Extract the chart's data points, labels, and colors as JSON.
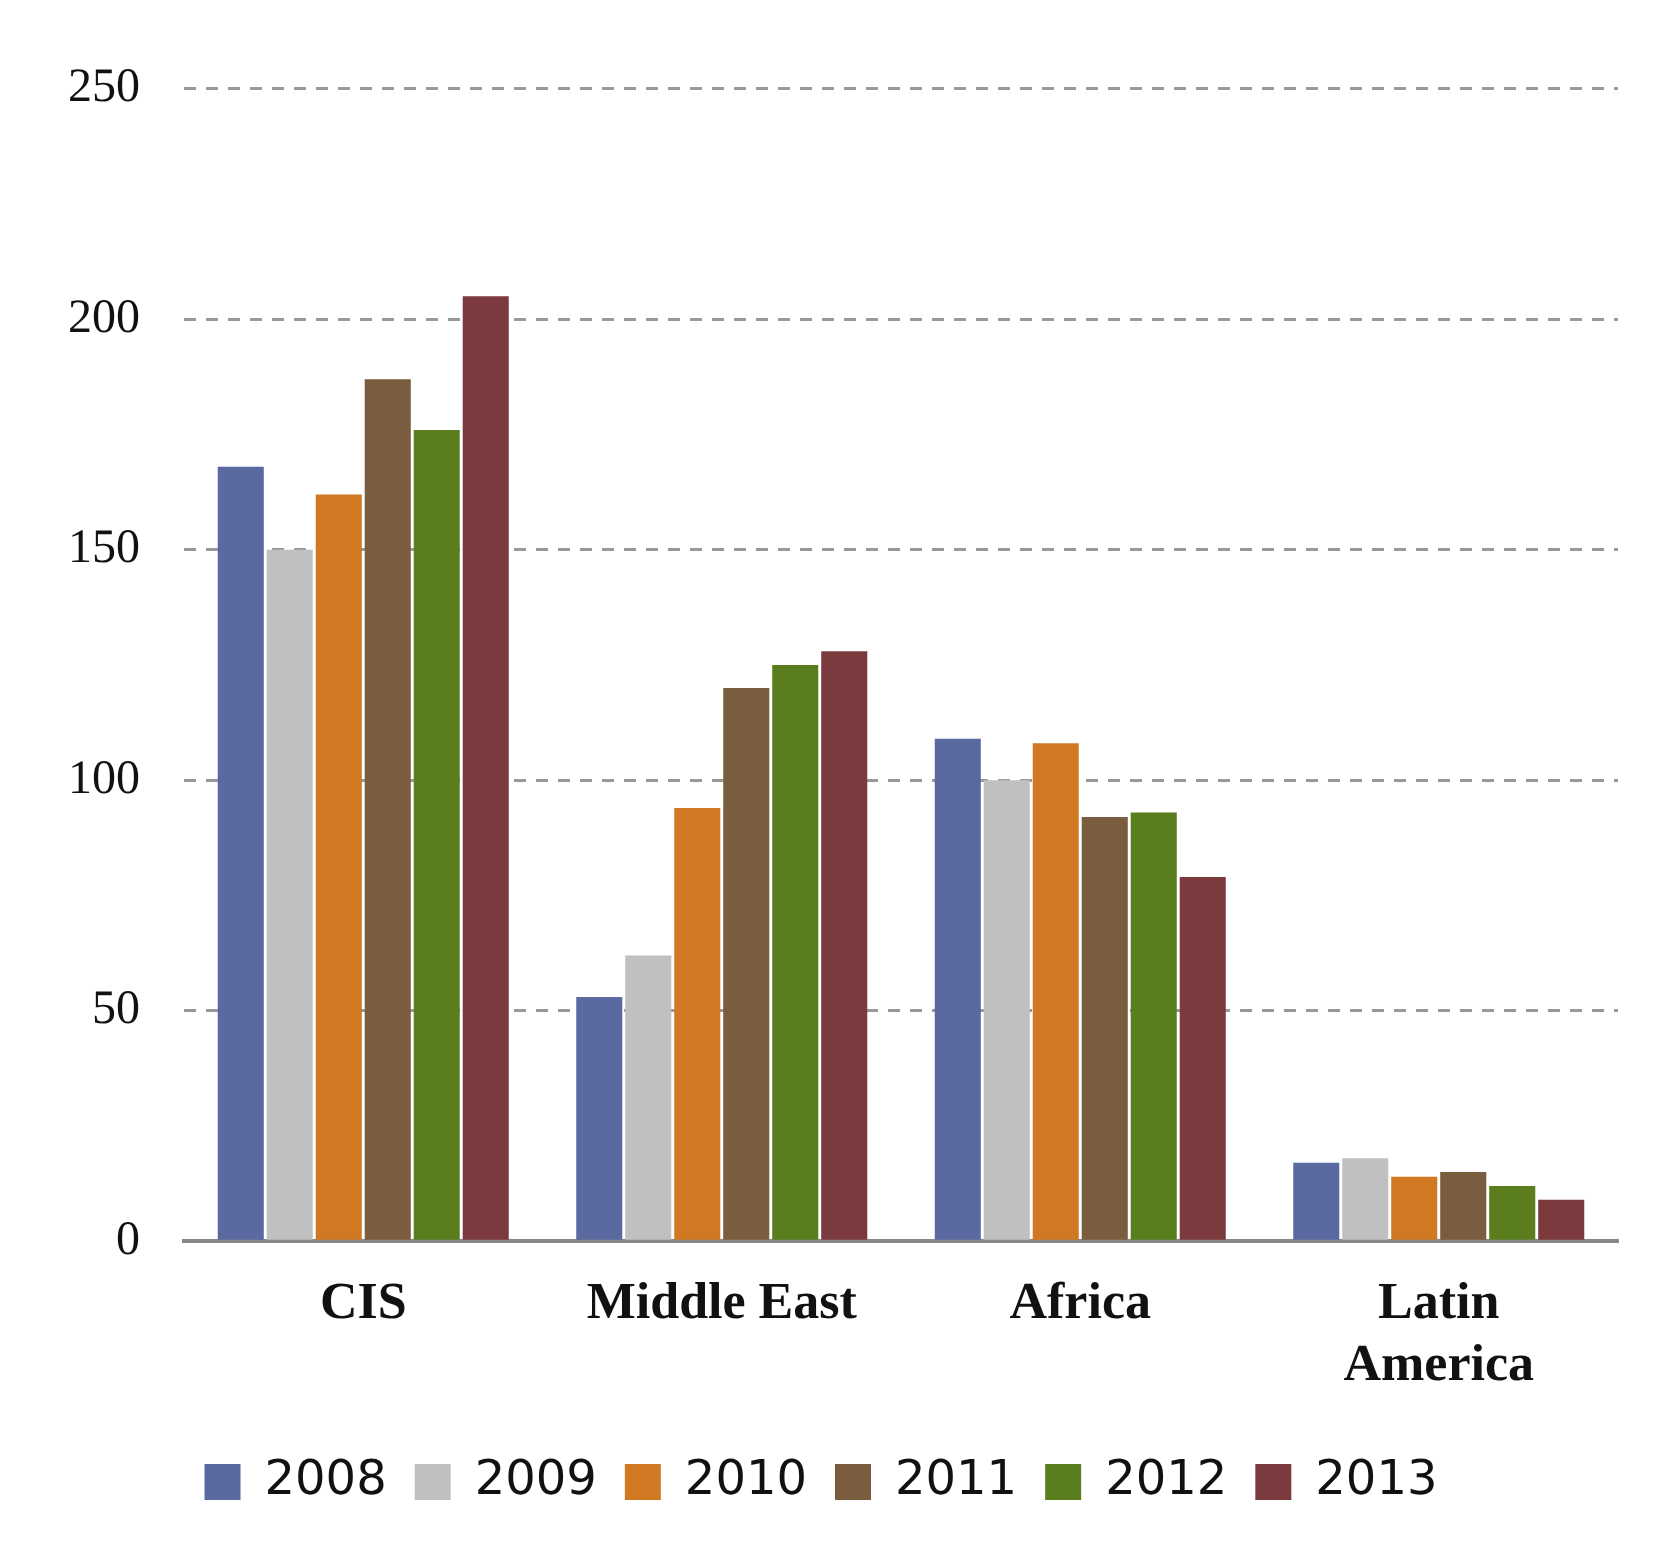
{
  "chart_data": {
    "type": "bar",
    "categories": [
      "CIS",
      "Middle East",
      "Africa",
      "Latin America"
    ],
    "series": [
      {
        "name": "2008",
        "color": "#5a6aa0",
        "values": [
          168,
          53,
          109,
          17
        ]
      },
      {
        "name": "2009",
        "color": "#c0c0c0",
        "values": [
          150,
          62,
          100,
          18
        ]
      },
      {
        "name": "2010",
        "color": "#d07822",
        "values": [
          162,
          94,
          108,
          14
        ]
      },
      {
        "name": "2011",
        "color": "#7a5c3e",
        "values": [
          187,
          120,
          92,
          15
        ]
      },
      {
        "name": "2012",
        "color": "#5a7e1e",
        "values": [
          176,
          125,
          93,
          12
        ]
      },
      {
        "name": "2013",
        "color": "#7a3a3e",
        "values": [
          205,
          128,
          79,
          9
        ]
      }
    ],
    "ylim": [
      0,
      250
    ],
    "yticks": [
      0,
      50,
      100,
      150,
      200,
      250
    ],
    "grid": "y",
    "legend": "bottom"
  }
}
